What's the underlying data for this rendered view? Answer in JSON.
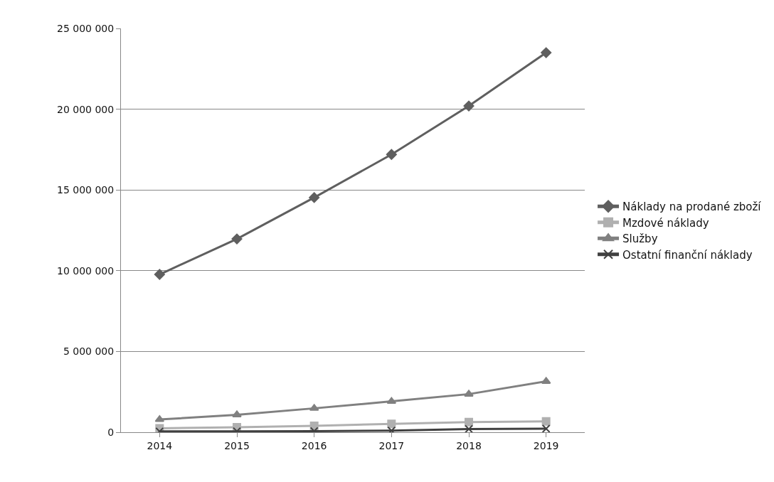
{
  "chart_data": {
    "type": "line",
    "categories": [
      "2014",
      "2015",
      "2016",
      "2017",
      "2018",
      "2019"
    ],
    "series": [
      {
        "name": "Náklady na prodané zboží",
        "color": "#5f5f5f",
        "marker": "diamond",
        "values": [
          9770000,
          11970000,
          14530000,
          17200000,
          20200000,
          23500000
        ]
      },
      {
        "name": "Mzdové náklady",
        "color": "#b0b0b0",
        "marker": "square",
        "values": [
          240000,
          310000,
          400000,
          520000,
          630000,
          670000
        ]
      },
      {
        "name": "Služby",
        "color": "#808080",
        "marker": "triangle",
        "values": [
          790000,
          1080000,
          1480000,
          1910000,
          2360000,
          3150000
        ]
      },
      {
        "name": "Ostatní finanční náklady",
        "color": "#404040",
        "marker": "cross",
        "values": [
          50000,
          60000,
          70000,
          100000,
          200000,
          220000
        ]
      }
    ],
    "ylim": [
      0,
      25000000
    ],
    "yticks": [
      {
        "value": 0,
        "label": "0"
      },
      {
        "value": 5000000,
        "label": "5 000 000"
      },
      {
        "value": 10000000,
        "label": "10 000 000"
      },
      {
        "value": 15000000,
        "label": "15 000 000"
      },
      {
        "value": 20000000,
        "label": "20 000 000"
      },
      {
        "value": 25000000,
        "label": "25 000 000"
      }
    ],
    "grid": "y",
    "legend": "right",
    "line_style": "solid"
  }
}
